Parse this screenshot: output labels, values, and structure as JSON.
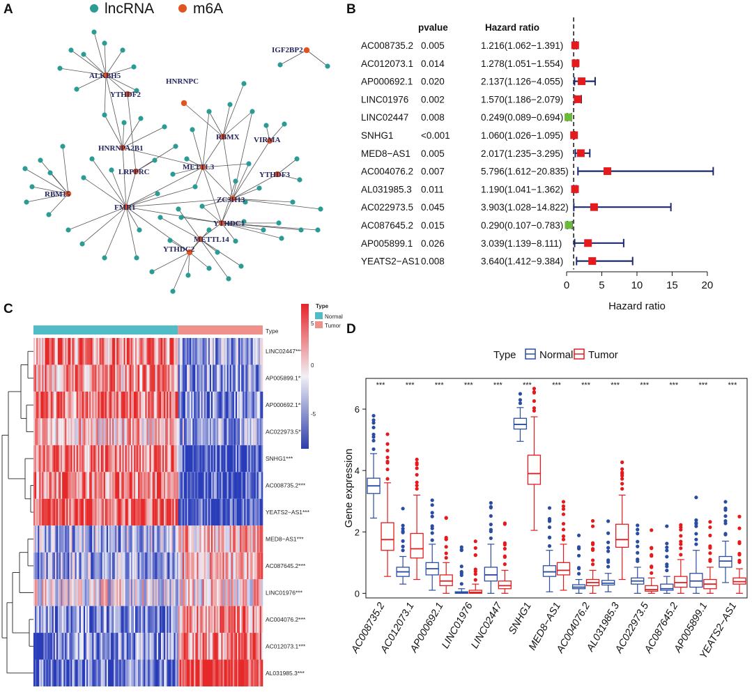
{
  "panels": {
    "a": "A",
    "b": "B",
    "c": "C",
    "d": "D"
  },
  "colors": {
    "lncrna": "#2b9b95",
    "m6a": "#e0541f",
    "edge": "#555555",
    "normal": "#2a4da1",
    "tumor": "#e41a1c",
    "fp_line": "#1c2a6b",
    "fp_risk": "#e41a1c",
    "fp_protect": "#6cba3a",
    "hm_type_normal": "#52bcc6",
    "hm_type_tumor": "#f0908b"
  },
  "network": {
    "legend": [
      {
        "label": "lncRNA",
        "kind": "lncrna"
      },
      {
        "label": "m6A",
        "kind": "m6a"
      }
    ],
    "m6a_nodes": [
      "IGF2BP2",
      "ALKBH5",
      "HNRNPC",
      "YTHDF2",
      "RBMX",
      "VIRMA",
      "HNRNPA2B1",
      "LRPPRC",
      "METTL3",
      "YTHDF3",
      "RBM15",
      "FMR1",
      "ZC3H13",
      "YTHDC1",
      "METTL14",
      "YTHDC2"
    ]
  },
  "chart_data": [
    {
      "type": "forest",
      "title": "",
      "xlabel": "Hazard ratio",
      "column_headers": {
        "pvalue": "pvalue",
        "hr": "Hazard ratio"
      },
      "xlim": [
        0,
        21
      ],
      "xticks": [
        0,
        5,
        10,
        15,
        20
      ],
      "reference_line": 1,
      "rows": [
        {
          "gene": "AC008735.2",
          "pvalue": "0.005",
          "hr_text": "1.216(1.062−1.391)",
          "hr": 1.216,
          "lo": 1.062,
          "hi": 1.391
        },
        {
          "gene": "AC012073.1",
          "pvalue": "0.014",
          "hr_text": "1.278(1.051−1.554)",
          "hr": 1.278,
          "lo": 1.051,
          "hi": 1.554
        },
        {
          "gene": "AP000692.1",
          "pvalue": "0.020",
          "hr_text": "2.137(1.126−4.055)",
          "hr": 2.137,
          "lo": 1.126,
          "hi": 4.055
        },
        {
          "gene": "LINC01976",
          "pvalue": "0.002",
          "hr_text": "1.570(1.186−2.079)",
          "hr": 1.57,
          "lo": 1.186,
          "hi": 2.079
        },
        {
          "gene": "LINC02447",
          "pvalue": "0.008",
          "hr_text": "0.249(0.089−0.694)",
          "hr": 0.249,
          "lo": 0.089,
          "hi": 0.694
        },
        {
          "gene": "SNHG1",
          "pvalue": "<0.001",
          "hr_text": "1.060(1.026−1.095)",
          "hr": 1.06,
          "lo": 1.026,
          "hi": 1.095
        },
        {
          "gene": "MED8−AS1",
          "pvalue": "0.005",
          "hr_text": "2.017(1.235−3.295)",
          "hr": 2.017,
          "lo": 1.235,
          "hi": 3.295
        },
        {
          "gene": "AC004076.2",
          "pvalue": "0.007",
          "hr_text": "5.796(1.612−20.835)",
          "hr": 5.796,
          "lo": 1.612,
          "hi": 20.835
        },
        {
          "gene": "AL031985.3",
          "pvalue": "0.011",
          "hr_text": "1.190(1.041−1.362)",
          "hr": 1.19,
          "lo": 1.041,
          "hi": 1.362
        },
        {
          "gene": "AC022973.5",
          "pvalue": "0.045",
          "hr_text": "3.903(1.028−14.822)",
          "hr": 3.903,
          "lo": 1.028,
          "hi": 14.822
        },
        {
          "gene": "AC087645.2",
          "pvalue": "0.015",
          "hr_text": "0.290(0.107−0.783)",
          "hr": 0.29,
          "lo": 0.107,
          "hi": 0.783
        },
        {
          "gene": "AP005899.1",
          "pvalue": "0.026",
          "hr_text": "3.039(1.139−8.111)",
          "hr": 3.039,
          "lo": 1.139,
          "hi": 8.111
        },
        {
          "gene": "YEATS2−AS1",
          "pvalue": "0.008",
          "hr_text": "3.640(1.412−9.384)",
          "hr": 3.64,
          "lo": 1.412,
          "hi": 9.384
        }
      ]
    },
    {
      "type": "heatmap",
      "annotation_label": "Type",
      "legend_title": "Type",
      "legend_groups": [
        "Normal",
        "Tumor"
      ],
      "normal_fraction": 0.63,
      "color_scale": {
        "min": -5,
        "max": 5,
        "ticks": [
          "5",
          "0",
          "-5"
        ]
      },
      "rows": [
        {
          "label": "LINC02447***",
          "normal_level": 0.55,
          "tumor_level": -0.5
        },
        {
          "label": "AP005899.1***",
          "normal_level": 0.45,
          "tumor_level": -0.5
        },
        {
          "label": "AP000692.1***",
          "normal_level": 0.6,
          "tumor_level": -0.55
        },
        {
          "label": "AC022973.5***",
          "normal_level": 0.2,
          "tumor_level": -0.45
        },
        {
          "label": "SNHG1***",
          "normal_level": 0.55,
          "tumor_level": -0.9
        },
        {
          "label": "AC008735.2***",
          "normal_level": 0.55,
          "tumor_level": -0.85
        },
        {
          "label": "YEATS2−AS1***",
          "normal_level": 0.7,
          "tumor_level": -0.9
        },
        {
          "label": "MED8−AS1***",
          "normal_level": -0.35,
          "tumor_level": 0.3
        },
        {
          "label": "AC087645.2***",
          "normal_level": -0.45,
          "tumor_level": 0.3
        },
        {
          "label": "LINC01976***",
          "normal_level": -0.02,
          "tumor_level": 0.15
        },
        {
          "label": "AC004076.2***",
          "normal_level": -0.6,
          "tumor_level": 0.5
        },
        {
          "label": "AC012073.1***",
          "normal_level": -0.55,
          "tumor_level": 0.55
        },
        {
          "label": "AL031985.3***",
          "normal_level": -0.7,
          "tumor_level": 0.9
        }
      ]
    },
    {
      "type": "boxplot",
      "legend_title": "Type",
      "series": [
        {
          "name": "Normal"
        },
        {
          "name": "Tumor"
        }
      ],
      "ylabel": "Gene expression",
      "ylim": [
        -0.15,
        7
      ],
      "yticks": [
        0,
        2,
        4,
        6
      ],
      "significance": "***",
      "categories": [
        {
          "name": "AC008735.2",
          "normal": [
            2.45,
            3.25,
            3.5,
            3.75,
            4.55
          ],
          "tumor": [
            0.55,
            1.4,
            1.75,
            2.3,
            3.6
          ]
        },
        {
          "name": "AC012073.1",
          "normal": [
            0.3,
            0.55,
            0.7,
            0.85,
            1.2
          ],
          "tumor": [
            0.45,
            1.15,
            1.45,
            1.95,
            3.2
          ]
        },
        {
          "name": "AP000692.1",
          "normal": [
            0.1,
            0.6,
            0.8,
            1.0,
            1.6
          ],
          "tumor": [
            0.0,
            0.25,
            0.4,
            0.6,
            1.0
          ]
        },
        {
          "name": "LINC01976",
          "normal": [
            0.0,
            0.0,
            0.02,
            0.05,
            0.15
          ],
          "tumor": [
            0.0,
            0.0,
            0.03,
            0.1,
            0.3
          ]
        },
        {
          "name": "LINC02447",
          "normal": [
            0.0,
            0.4,
            0.6,
            0.85,
            1.6
          ],
          "tumor": [
            0.0,
            0.15,
            0.25,
            0.4,
            0.75
          ]
        },
        {
          "name": "SNHG1",
          "normal": [
            4.95,
            5.35,
            5.5,
            5.7,
            6.05
          ],
          "tumor": [
            2.05,
            3.55,
            3.9,
            4.5,
            5.75
          ]
        },
        {
          "name": "MED8−AS1",
          "normal": [
            0.05,
            0.55,
            0.7,
            0.9,
            1.4
          ],
          "tumor": [
            0.1,
            0.6,
            0.75,
            1.0,
            1.6
          ]
        },
        {
          "name": "AC004076.2",
          "normal": [
            0.0,
            0.15,
            0.2,
            0.28,
            0.45
          ],
          "tumor": [
            0.0,
            0.25,
            0.35,
            0.45,
            0.75
          ]
        },
        {
          "name": "AL031985.3",
          "normal": [
            0.05,
            0.27,
            0.33,
            0.42,
            0.65
          ],
          "tumor": [
            0.45,
            1.5,
            1.75,
            2.25,
            3.2
          ]
        },
        {
          "name": "AC022973.5",
          "normal": [
            0.0,
            0.3,
            0.4,
            0.5,
            0.85
          ],
          "tumor": [
            0.0,
            0.07,
            0.12,
            0.25,
            0.5
          ]
        },
        {
          "name": "AC087645.2",
          "normal": [
            0.0,
            0.1,
            0.15,
            0.3,
            0.55
          ],
          "tumor": [
            0.0,
            0.2,
            0.35,
            0.55,
            1.1
          ]
        },
        {
          "name": "AP005899.1",
          "normal": [
            0.0,
            0.2,
            0.4,
            0.65,
            1.4
          ],
          "tumor": [
            0.0,
            0.15,
            0.3,
            0.45,
            0.85
          ]
        },
        {
          "name": "YEATS2−AS1",
          "normal": [
            0.35,
            0.85,
            1.05,
            1.2,
            1.7
          ],
          "tumor": [
            0.0,
            0.3,
            0.38,
            0.5,
            0.8
          ]
        }
      ]
    }
  ]
}
